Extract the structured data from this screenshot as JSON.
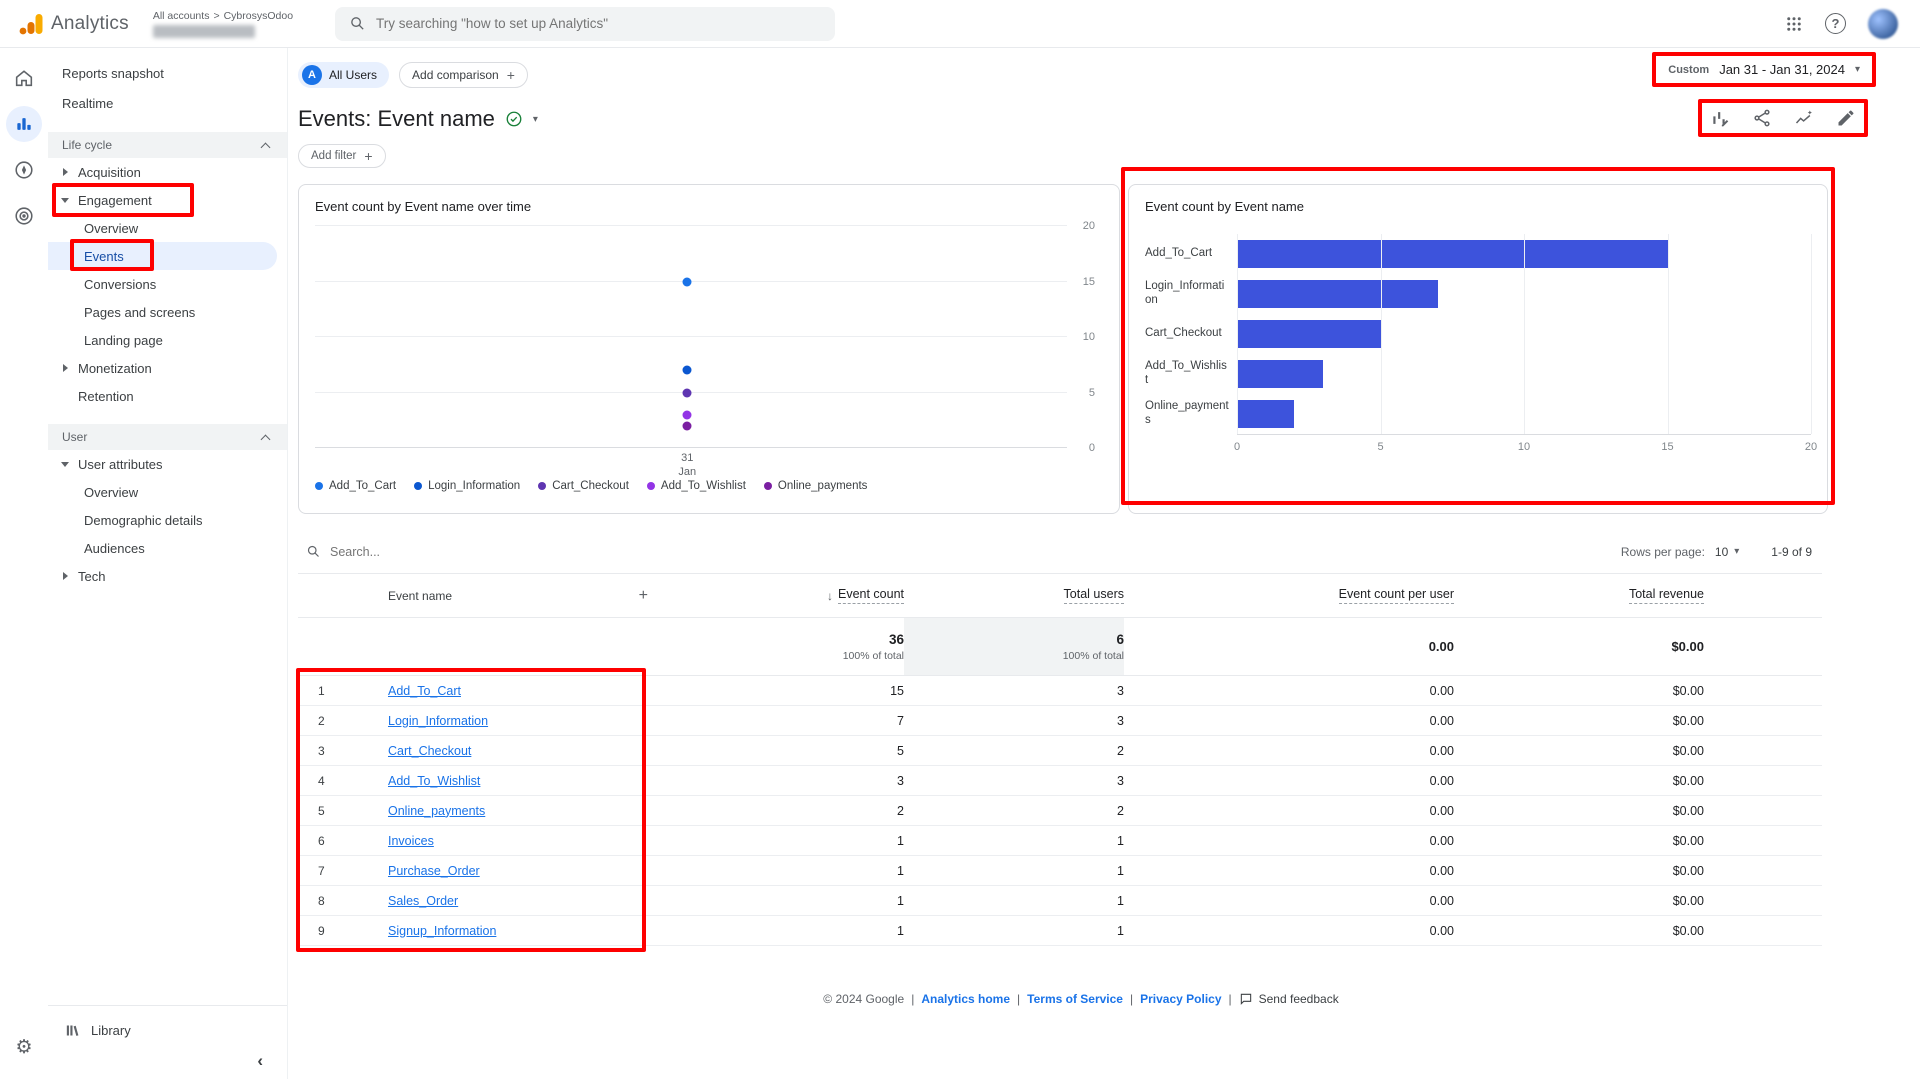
{
  "topbar": {
    "app_name": "Analytics",
    "breadcrumb": {
      "root": "All accounts",
      "sep": ">",
      "account": "CybrosysOdoo"
    },
    "search_placeholder": "Try searching \"how to set up Analytics\"",
    "help_icon": "?"
  },
  "sidebar": {
    "reports_snapshot": "Reports snapshot",
    "realtime": "Realtime",
    "sections": [
      {
        "header": "Life cycle",
        "items": [
          {
            "label": "Acquisition",
            "state": "collapsed"
          },
          {
            "label": "Engagement",
            "state": "expanded",
            "children": [
              {
                "label": "Overview"
              },
              {
                "label": "Events",
                "selected": true
              },
              {
                "label": "Conversions"
              },
              {
                "label": "Pages and screens"
              },
              {
                "label": "Landing page"
              }
            ]
          },
          {
            "label": "Monetization",
            "state": "collapsed"
          },
          {
            "label": "Retention",
            "state": "none"
          }
        ]
      },
      {
        "header": "User",
        "items": [
          {
            "label": "User attributes",
            "state": "expanded",
            "children": [
              {
                "label": "Overview"
              },
              {
                "label": "Demographic details"
              },
              {
                "label": "Audiences"
              }
            ]
          },
          {
            "label": "Tech",
            "state": "collapsed"
          }
        ]
      }
    ],
    "library": "Library"
  },
  "report": {
    "all_users_chip": "All Users",
    "all_users_initial": "A",
    "add_comparison": "Add comparison",
    "add_filter": "Add filter",
    "title": "Events: Event name",
    "date_range": {
      "preset": "Custom",
      "range": "Jan 31 - Jan 31, 2024"
    }
  },
  "chart_data": [
    {
      "type": "scatter",
      "title": "Event count by Event name over time",
      "x": [
        "31 Jan"
      ],
      "ylim": [
        0,
        20
      ],
      "yticks": [
        0,
        5,
        10,
        15,
        20
      ],
      "series": [
        {
          "name": "Add_To_Cart",
          "color": "#1a73e8",
          "values": [
            15
          ]
        },
        {
          "name": "Login_Information",
          "color": "#0b57d0",
          "values": [
            7
          ]
        },
        {
          "name": "Cart_Checkout",
          "color": "#5e35b1",
          "values": [
            5
          ]
        },
        {
          "name": "Add_To_Wishlist",
          "color": "#9334e6",
          "values": [
            3
          ]
        },
        {
          "name": "Online_payments",
          "color": "#7b1fa2",
          "values": [
            2
          ]
        }
      ],
      "legend_position": "bottom"
    },
    {
      "type": "bar",
      "orientation": "horizontal",
      "title": "Event count by Event name",
      "categories": [
        "Add_To_Cart",
        "Login_Information",
        "Cart_Checkout",
        "Add_To_Wishlist",
        "Online_payments"
      ],
      "values": [
        15,
        7,
        5,
        3,
        2
      ],
      "xlim": [
        0,
        20
      ],
      "xticks": [
        0,
        5,
        10,
        15,
        20
      ],
      "bar_color": "#3d53dc"
    }
  ],
  "table": {
    "search_placeholder": "Search...",
    "rows_per_page_label": "Rows per page:",
    "rows_per_page_value": "10",
    "pagination": "1-9 of 9",
    "columns": [
      "Event name",
      "Event count",
      "Total users",
      "Event count per user",
      "Total revenue"
    ],
    "totals": {
      "event_count": "36",
      "event_count_sub": "100% of total",
      "total_users": "6",
      "total_users_sub": "100% of total",
      "event_count_per_user": "0.00",
      "total_revenue": "$0.00"
    },
    "rows": [
      {
        "index": "1",
        "name": "Add_To_Cart",
        "event_count": "15",
        "total_users": "3",
        "event_count_per_user": "0.00",
        "total_revenue": "$0.00"
      },
      {
        "index": "2",
        "name": "Login_Information",
        "event_count": "7",
        "total_users": "3",
        "event_count_per_user": "0.00",
        "total_revenue": "$0.00"
      },
      {
        "index": "3",
        "name": "Cart_Checkout",
        "event_count": "5",
        "total_users": "2",
        "event_count_per_user": "0.00",
        "total_revenue": "$0.00"
      },
      {
        "index": "4",
        "name": "Add_To_Wishlist",
        "event_count": "3",
        "total_users": "3",
        "event_count_per_user": "0.00",
        "total_revenue": "$0.00"
      },
      {
        "index": "5",
        "name": "Online_payments",
        "event_count": "2",
        "total_users": "2",
        "event_count_per_user": "0.00",
        "total_revenue": "$0.00"
      },
      {
        "index": "6",
        "name": "Invoices",
        "event_count": "1",
        "total_users": "1",
        "event_count_per_user": "0.00",
        "total_revenue": "$0.00"
      },
      {
        "index": "7",
        "name": "Purchase_Order",
        "event_count": "1",
        "total_users": "1",
        "event_count_per_user": "0.00",
        "total_revenue": "$0.00"
      },
      {
        "index": "8",
        "name": "Sales_Order",
        "event_count": "1",
        "total_users": "1",
        "event_count_per_user": "0.00",
        "total_revenue": "$0.00"
      },
      {
        "index": "9",
        "name": "Signup_Information",
        "event_count": "1",
        "total_users": "1",
        "event_count_per_user": "0.00",
        "total_revenue": "$0.00"
      }
    ]
  },
  "footer": {
    "copyright": "© 2024 Google",
    "sep": "|",
    "links": [
      "Analytics home",
      "Terms of Service",
      "Privacy Policy"
    ],
    "send_feedback": "Send feedback"
  },
  "icons": {
    "plus": "+",
    "caret_down": "▾",
    "sort_desc": "↓",
    "collapse_left": "‹"
  },
  "colors": {
    "accent_blue": "#1a73e8",
    "selected_bg": "#e8f0fe",
    "annotation_red": "#fe0000",
    "bar_blue": "#3d53dc"
  }
}
